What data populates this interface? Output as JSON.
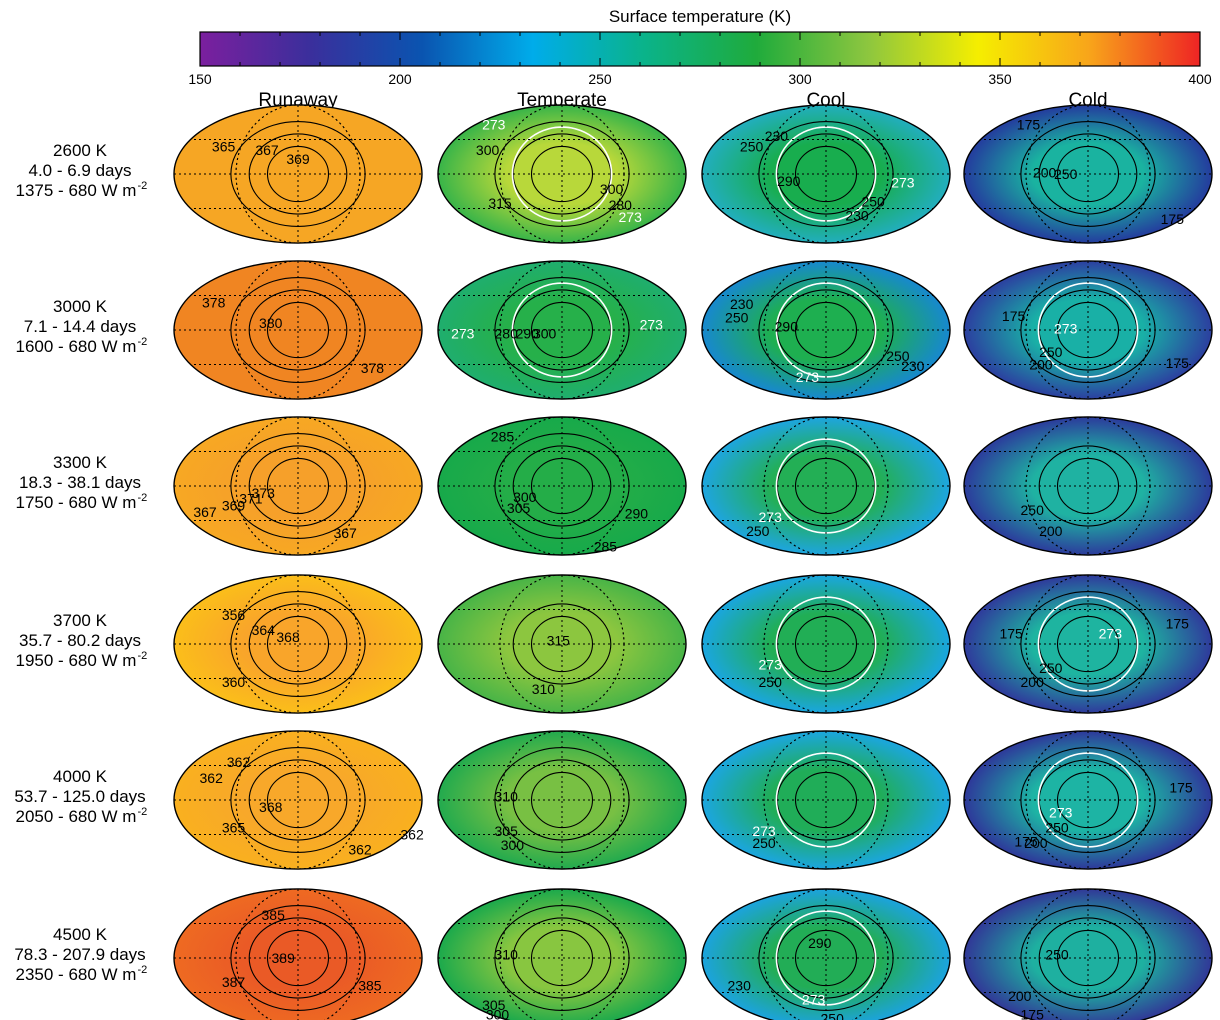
{
  "chart_data": {
    "type": "heatmap",
    "title": "Surface temperature (K)",
    "colorbar": {
      "label": "Surface temperature (K)",
      "range": [
        150,
        400
      ],
      "ticks": [
        "150",
        "200",
        "250",
        "300",
        "350",
        "400"
      ],
      "colors": [
        "#7b1f9e",
        "#3a2f9c",
        "#0a54b0",
        "#00acea",
        "#0ab38a",
        "#1fab3c",
        "#8cc63f",
        "#f5ee00",
        "#f8a51a",
        "#ee2424"
      ]
    },
    "columns": [
      "Runaway",
      "Temperate",
      "Cool",
      "Cold"
    ],
    "rows": [
      {
        "label": [
          "2600 K",
          "4.0 - 6.9 days",
          "1375 - 680 W m"
        ],
        "unit_exp": "-2",
        "panels": [
          {
            "regime": "Runaway",
            "mean": 366,
            "bg": "#f6a624",
            "center": "#f6a624",
            "label_color": "#000",
            "contours": [
              {
                "value": "365"
              },
              {
                "value": "367"
              },
              {
                "value": "369"
              }
            ]
          },
          {
            "regime": "Temperate",
            "mean": 300,
            "bg": "#38b449",
            "center": "#b8d83a",
            "label_color": "#000",
            "contours": [
              {
                "value": "273"
              },
              {
                "value": "300"
              },
              {
                "value": "315"
              },
              {
                "value": "300"
              },
              {
                "value": "280"
              },
              {
                "value": "273"
              }
            ]
          },
          {
            "regime": "Cool",
            "mean": 265,
            "bg": "#22aebe",
            "center": "#18ad4e",
            "label_color": "#000",
            "contours": [
              {
                "value": "230"
              },
              {
                "value": "250"
              },
              {
                "value": "290"
              },
              {
                "value": "273"
              },
              {
                "value": "250"
              },
              {
                "value": "230"
              }
            ]
          },
          {
            "regime": "Cold",
            "mean": 195,
            "bg": "#243c9e",
            "center": "#1ab3a0",
            "label_color": "#000",
            "contours": [
              {
                "value": "175"
              },
              {
                "value": "200"
              },
              {
                "value": "250"
              },
              {
                "value": "175"
              }
            ]
          }
        ]
      },
      {
        "label": [
          "3000 K",
          "7.1 - 14.4 days",
          "1600 - 680 W m"
        ],
        "unit_exp": "-2",
        "panels": [
          {
            "regime": "Runaway",
            "mean": 379,
            "bg": "#f08522",
            "center": "#f08522",
            "label_color": "#000",
            "contours": [
              {
                "value": "378"
              },
              {
                "value": "380"
              },
              {
                "value": "378"
              }
            ]
          },
          {
            "regime": "Temperate",
            "mean": 285,
            "bg": "#1fae6e",
            "center": "#26b04a",
            "label_color": "#000",
            "contours": [
              {
                "value": "273"
              },
              {
                "value": "280"
              },
              {
                "value": "290"
              },
              {
                "value": "300"
              },
              {
                "value": "273"
              }
            ]
          },
          {
            "regime": "Cool",
            "mean": 255,
            "bg": "#1788cf",
            "center": "#1eaf50",
            "label_color": "#000",
            "contours": [
              {
                "value": "230"
              },
              {
                "value": "250"
              },
              {
                "value": "290"
              },
              {
                "value": "273"
              },
              {
                "value": "250"
              },
              {
                "value": "230"
              }
            ]
          },
          {
            "regime": "Cold",
            "mean": 190,
            "bg": "#2c3fa0",
            "center": "#19b0a6",
            "label_color": "#000",
            "contours": [
              {
                "value": "175"
              },
              {
                "value": "273"
              },
              {
                "value": "250"
              },
              {
                "value": "200"
              },
              {
                "value": "175"
              }
            ]
          }
        ]
      },
      {
        "label": [
          "3300 K",
          "18.3 - 38.1 days",
          "1750 - 680 W m"
        ],
        "unit_exp": "-2",
        "panels": [
          {
            "regime": "Runaway",
            "mean": 368,
            "bg": "#f7a823",
            "center": "#f6a02a",
            "label_color": "#000",
            "contours": [
              {
                "value": "367"
              },
              {
                "value": "369"
              },
              {
                "value": "371"
              },
              {
                "value": "373"
              },
              {
                "value": "367"
              }
            ]
          },
          {
            "regime": "Temperate",
            "mean": 292,
            "bg": "#17a94a",
            "center": "#24ad48",
            "label_color": "#000",
            "contours": [
              {
                "value": "285"
              },
              {
                "value": "305"
              },
              {
                "value": "300"
              },
              {
                "value": "290"
              },
              {
                "value": "285"
              }
            ]
          },
          {
            "regime": "Cool",
            "mean": 262,
            "bg": "#1ea5e0",
            "center": "#23af55",
            "label_color": "#000",
            "contours": [
              {
                "value": "273"
              },
              {
                "value": "250"
              }
            ]
          },
          {
            "regime": "Cold",
            "mean": 190,
            "bg": "#2c3b9c",
            "center": "#1fb2a2",
            "label_color": "#000",
            "contours": [
              {
                "value": "250"
              },
              {
                "value": "200"
              }
            ]
          }
        ]
      },
      {
        "label": [
          "3700 K",
          "35.7 - 80.2 days",
          "1950 - 680 W m"
        ],
        "unit_exp": "-2",
        "panels": [
          {
            "regime": "Runaway",
            "mean": 359,
            "bg": "#fbbe1a",
            "center": "#f9a52a",
            "label_color": "#000",
            "contours": [
              {
                "value": "356"
              },
              {
                "value": "364"
              },
              {
                "value": "368"
              },
              {
                "value": "360"
              }
            ]
          },
          {
            "regime": "Temperate",
            "mean": 308,
            "bg": "#48b447",
            "center": "#8cc63f",
            "label_color": "#000",
            "contours": [
              {
                "value": "315"
              },
              {
                "value": "310"
              }
            ]
          },
          {
            "regime": "Cool",
            "mean": 262,
            "bg": "#1aa6e0",
            "center": "#21ae55",
            "label_color": "#000",
            "contours": [
              {
                "value": "273"
              },
              {
                "value": "250"
              }
            ]
          },
          {
            "regime": "Cold",
            "mean": 190,
            "bg": "#2f3a9c",
            "center": "#1eb4a0",
            "label_color": "#000",
            "contours": [
              {
                "value": "175"
              },
              {
                "value": "273"
              },
              {
                "value": "175"
              },
              {
                "value": "250"
              },
              {
                "value": "200"
              }
            ]
          }
        ]
      },
      {
        "label": [
          "4000 K",
          "53.7 - 125.0 days",
          "2050 - 680 W m"
        ],
        "unit_exp": "-2",
        "panels": [
          {
            "regime": "Runaway",
            "mean": 364,
            "bg": "#f9b01f",
            "center": "#f8a82a",
            "label_color": "#000",
            "contours": [
              {
                "value": "362"
              },
              {
                "value": "362"
              },
              {
                "value": "368"
              },
              {
                "value": "365"
              },
              {
                "value": "362"
              },
              {
                "value": "362"
              }
            ]
          },
          {
            "regime": "Temperate",
            "mean": 305,
            "bg": "#22aa4e",
            "center": "#78c043",
            "label_color": "#000",
            "contours": [
              {
                "value": "310"
              },
              {
                "value": "305"
              },
              {
                "value": "300"
              }
            ]
          },
          {
            "regime": "Cool",
            "mean": 262,
            "bg": "#1ba6e0",
            "center": "#20ad58",
            "label_color": "#000",
            "contours": [
              {
                "value": "273"
              },
              {
                "value": "250"
              }
            ]
          },
          {
            "regime": "Cold",
            "mean": 190,
            "bg": "#2e389a",
            "center": "#1db4a4",
            "label_color": "#000",
            "contours": [
              {
                "value": "175"
              },
              {
                "value": "273"
              },
              {
                "value": "250"
              },
              {
                "value": "175"
              },
              {
                "value": "200"
              }
            ]
          }
        ]
      },
      {
        "label": [
          "4500 K",
          "78.3 - 207.9 days",
          "2350 - 680 W m"
        ],
        "unit_exp": "-2",
        "panels": [
          {
            "regime": "Runaway",
            "mean": 386,
            "bg": "#ee6a22",
            "center": "#ea5a26",
            "label_color": "#000",
            "contours": [
              {
                "value": "385"
              },
              {
                "value": "389"
              },
              {
                "value": "387"
              },
              {
                "value": "385"
              }
            ]
          },
          {
            "regime": "Temperate",
            "mean": 305,
            "bg": "#1ba94c",
            "center": "#88c640",
            "label_color": "#000",
            "contours": [
              {
                "value": "310"
              },
              {
                "value": "305"
              },
              {
                "value": "300"
              }
            ]
          },
          {
            "regime": "Cool",
            "mean": 262,
            "bg": "#1ca3de",
            "center": "#22ad56",
            "label_color": "#000",
            "contours": [
              {
                "value": "290"
              },
              {
                "value": "230"
              },
              {
                "value": "273"
              },
              {
                "value": "250"
              }
            ]
          },
          {
            "regime": "Cold",
            "mean": 190,
            "bg": "#313897",
            "center": "#1eb0a0",
            "label_color": "#000",
            "contours": [
              {
                "value": "250"
              },
              {
                "value": "200"
              },
              {
                "value": "175"
              }
            ]
          }
        ]
      }
    ]
  }
}
